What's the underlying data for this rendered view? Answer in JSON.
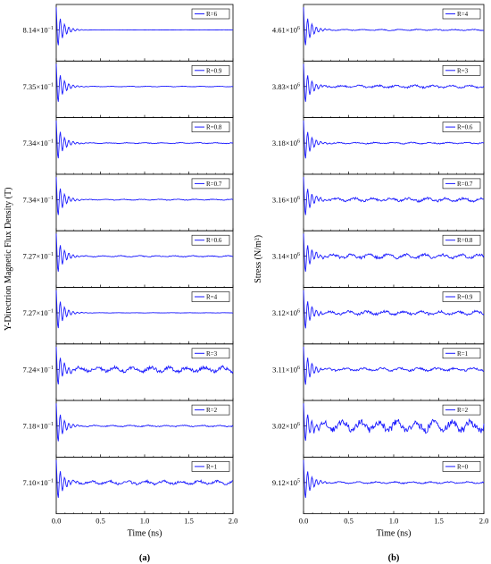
{
  "chart_data": [
    {
      "type": "line",
      "panel_label": "(a)",
      "ylabel": "Y-Directrion Magnetic Flux Density (T)",
      "xlabel": "Time (ns)",
      "x_ticks": [
        "0.0",
        "0.5",
        "1.0",
        "1.5",
        "2.0"
      ],
      "xlim": [
        0,
        2
      ],
      "series_color": "#1a1aff",
      "series": [
        {
          "name": "R=6",
          "y_label_base": "8.14×10",
          "y_label_exp": "−1",
          "settle": 0.995,
          "noise": 0.02
        },
        {
          "name": "R=0.9",
          "y_label_base": "7.35×10",
          "y_label_exp": "−1",
          "settle": 0.7,
          "noise": 0.05
        },
        {
          "name": "R=0.8",
          "y_label_base": "7.34×10",
          "y_label_exp": "−1",
          "settle": 0.65,
          "noise": 0.07
        },
        {
          "name": "R=0.7",
          "y_label_base": "7.34×10",
          "y_label_exp": "−1",
          "settle": 0.6,
          "noise": 0.08
        },
        {
          "name": "R=0.6",
          "y_label_base": "7.27×10",
          "y_label_exp": "−1",
          "settle": 0.6,
          "noise": 0.1
        },
        {
          "name": "R=4",
          "y_label_base": "7.27×10",
          "y_label_exp": "−1",
          "settle": 0.5,
          "noise": 0.03
        },
        {
          "name": "R=3",
          "y_label_base": "7.24×10",
          "y_label_exp": "−1",
          "settle": 0.45,
          "noise": 0.45
        },
        {
          "name": "R=2",
          "y_label_base": "7.18×10",
          "y_label_exp": "−1",
          "settle": 0.5,
          "noise": 0.12
        },
        {
          "name": "R=1",
          "y_label_base": "7.10×10",
          "y_label_exp": "−1",
          "settle": 0.45,
          "noise": 0.3
        }
      ]
    },
    {
      "type": "line",
      "panel_label": "(b)",
      "ylabel": "Stress (N/m²)",
      "xlabel": "Time (ns)",
      "x_ticks": [
        "0.0",
        "0.5",
        "1.0",
        "1.5",
        "2.0"
      ],
      "xlim": [
        0,
        2
      ],
      "series_color": "#1a1aff",
      "series": [
        {
          "name": "R=4",
          "y_label_base": "4.61×10",
          "y_label_exp": "6",
          "settle": 0.55,
          "noise": 0.1
        },
        {
          "name": "R=3",
          "y_label_base": "3.83×10",
          "y_label_exp": "6",
          "settle": 0.5,
          "noise": 0.22
        },
        {
          "name": "R=0.6",
          "y_label_base": "3.18×10",
          "y_label_exp": "6",
          "settle": 0.5,
          "noise": 0.12
        },
        {
          "name": "R=0.7",
          "y_label_base": "3.16×10",
          "y_label_exp": "6",
          "settle": 0.45,
          "noise": 0.3
        },
        {
          "name": "R=0.8",
          "y_label_base": "3.14×10",
          "y_label_exp": "6",
          "settle": 0.45,
          "noise": 0.35
        },
        {
          "name": "R=0.9",
          "y_label_base": "3.12×10",
          "y_label_exp": "6",
          "settle": 0.45,
          "noise": 0.3
        },
        {
          "name": "R=1",
          "y_label_base": "3.11×10",
          "y_label_exp": "6",
          "settle": 0.45,
          "noise": 0.25
        },
        {
          "name": "R=2",
          "y_label_base": "3.02×10",
          "y_label_exp": "6",
          "settle": 0.3,
          "noise": 0.9
        },
        {
          "name": "R=0",
          "y_label_base": "9.12×10",
          "y_label_exp": "5",
          "settle": 0.35,
          "noise": 0.15
        }
      ]
    }
  ]
}
